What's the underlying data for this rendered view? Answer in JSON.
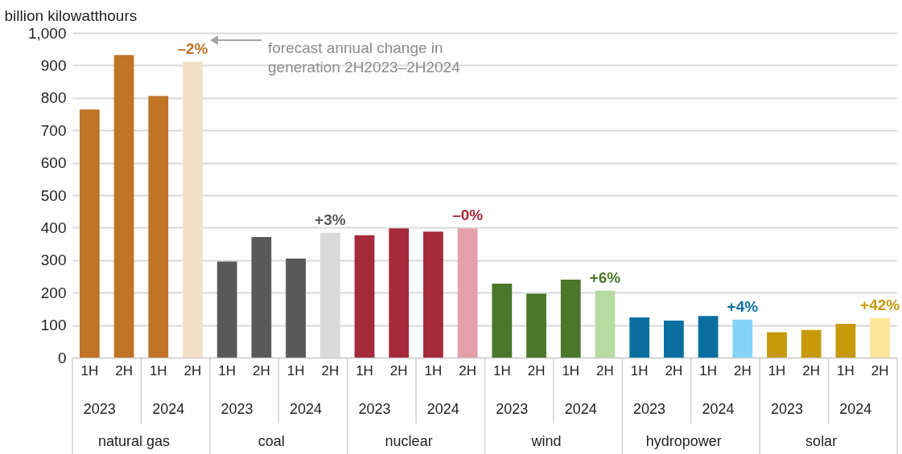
{
  "chart_data": {
    "type": "bar",
    "ylabel": "billion kilowatthours",
    "categories": [
      "1H",
      "2H",
      "1H",
      "2H",
      "1H",
      "2H",
      "1H",
      "2H",
      "1H",
      "2H",
      "1H",
      "2H",
      "1H",
      "2H",
      "1H",
      "2H",
      "1H",
      "2H",
      "1H",
      "2H",
      "1H",
      "2H",
      "1H",
      "2H"
    ],
    "values": [
      764,
      932,
      806,
      911,
      296,
      371,
      305,
      384,
      377,
      398,
      388,
      398,
      228,
      197,
      240,
      206,
      124,
      114,
      128,
      117,
      78,
      85,
      104,
      121
    ],
    "colors": [
      "#bf7426",
      "#bf7426",
      "#bf7426",
      "#f2dfc6",
      "#595959",
      "#595959",
      "#595959",
      "#d9d9d9",
      "#a52a3a",
      "#a52a3a",
      "#a52a3a",
      "#e4a0aa",
      "#4a7729",
      "#4a7729",
      "#4a7729",
      "#b7dba0",
      "#0a6fa0",
      "#0a6fa0",
      "#0a6fa0",
      "#85d3f7",
      "#c89a0a",
      "#c89a0a",
      "#c89a0a",
      "#fde59a"
    ],
    "ylim": [
      0,
      1000
    ],
    "yticks": [
      0,
      100,
      200,
      300,
      400,
      500,
      600,
      700,
      800,
      900,
      {
        "value": 1000,
        "label": "1,000"
      }
    ],
    "grid": "y",
    "annotations": [
      "forecast annual change in generation 2H2023–2H2024",
      "–2%",
      "+3%",
      "–0%",
      "+6%",
      "+4%",
      "+42%",
      "2023",
      "2024",
      "2023",
      "2024",
      "2023",
      "2024",
      "2023",
      "2024",
      "2023",
      "2024",
      "2023",
      "2024",
      "natural gas",
      "coal",
      "nuclear",
      "wind",
      "hydropower",
      "solar"
    ]
  }
}
